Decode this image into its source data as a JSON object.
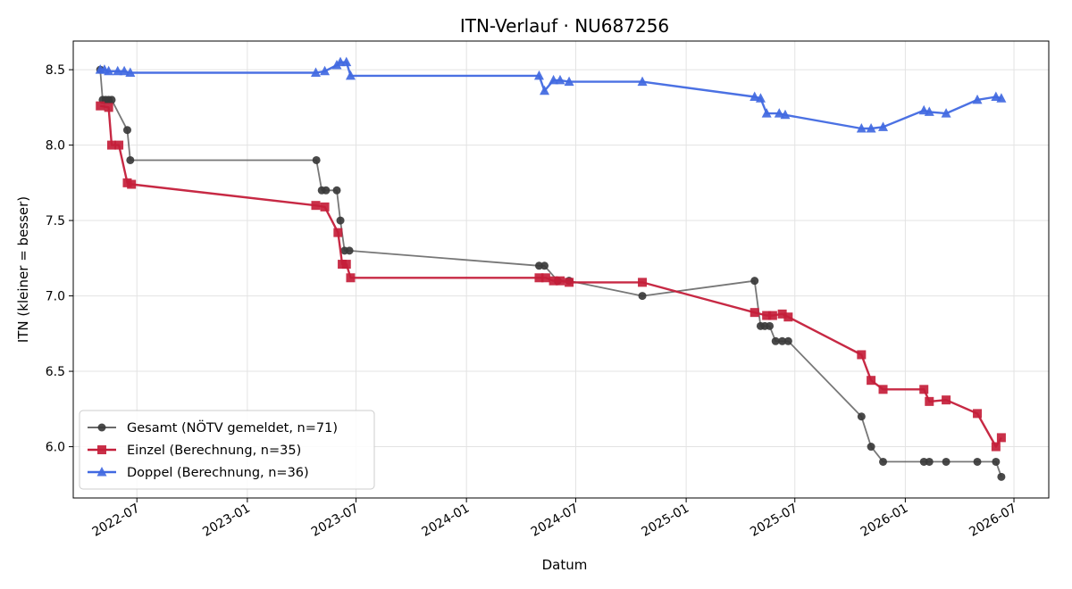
{
  "chart_data": {
    "type": "line",
    "title": "ITN-Verlauf · NU687256",
    "xlabel": "Datum",
    "ylabel": "ITN  (kleiner = besser)",
    "x_type": "date",
    "xlim": [
      "2022-03-17",
      "2026-08-28"
    ],
    "ylim": [
      5.66,
      8.69
    ],
    "x_ticks": [
      "2022-07",
      "2023-01",
      "2023-07",
      "2024-01",
      "2024-07",
      "2025-01",
      "2025-07",
      "2026-01",
      "2026-07"
    ],
    "y_ticks": [
      6.0,
      6.5,
      7.0,
      7.5,
      8.0,
      8.5
    ],
    "grid": true,
    "legend_position": "lower-left",
    "series": [
      {
        "name": "Gesamt (NÖTV gemeldet, n=71)",
        "color": "#555555",
        "marker": "circle",
        "points": [
          [
            "2022-05-01",
            8.5
          ],
          [
            "2022-05-05",
            8.3
          ],
          [
            "2022-05-10",
            8.3
          ],
          [
            "2022-05-15",
            8.3
          ],
          [
            "2022-05-20",
            8.3
          ],
          [
            "2022-06-15",
            8.1
          ],
          [
            "2022-06-20",
            7.9
          ],
          [
            "2023-04-26",
            7.9
          ],
          [
            "2023-05-05",
            7.7
          ],
          [
            "2023-05-12",
            7.7
          ],
          [
            "2023-05-30",
            7.7
          ],
          [
            "2023-06-05",
            7.5
          ],
          [
            "2023-06-12",
            7.3
          ],
          [
            "2023-06-20",
            7.3
          ],
          [
            "2024-05-01",
            7.2
          ],
          [
            "2024-05-10",
            7.2
          ],
          [
            "2024-06-01",
            7.1
          ],
          [
            "2024-06-20",
            7.1
          ],
          [
            "2024-10-20",
            7.0
          ],
          [
            "2025-04-25",
            7.1
          ],
          [
            "2025-05-05",
            6.8
          ],
          [
            "2025-05-12",
            6.8
          ],
          [
            "2025-05-20",
            6.8
          ],
          [
            "2025-05-30",
            6.7
          ],
          [
            "2025-06-10",
            6.7
          ],
          [
            "2025-06-20",
            6.7
          ],
          [
            "2025-10-20",
            6.2
          ],
          [
            "2025-11-05",
            6.0
          ],
          [
            "2025-11-25",
            5.9
          ],
          [
            "2026-02-01",
            5.9
          ],
          [
            "2026-02-10",
            5.9
          ],
          [
            "2026-03-10",
            5.9
          ],
          [
            "2026-05-01",
            5.9
          ],
          [
            "2026-06-01",
            5.9
          ],
          [
            "2026-06-10",
            5.8
          ]
        ]
      },
      {
        "name": "Einzel (Berechnung, n=35)",
        "color": "#c41e3a",
        "marker": "square",
        "points": [
          [
            "2022-05-01",
            8.26
          ],
          [
            "2022-05-15",
            8.25
          ],
          [
            "2022-05-20",
            8.0
          ],
          [
            "2022-06-01",
            8.0
          ],
          [
            "2022-06-15",
            7.75
          ],
          [
            "2022-06-22",
            7.74
          ],
          [
            "2023-04-25",
            7.6
          ],
          [
            "2023-05-10",
            7.59
          ],
          [
            "2023-06-01",
            7.42
          ],
          [
            "2023-06-08",
            7.21
          ],
          [
            "2023-06-15",
            7.21
          ],
          [
            "2023-06-22",
            7.12
          ],
          [
            "2024-05-01",
            7.12
          ],
          [
            "2024-05-12",
            7.12
          ],
          [
            "2024-05-25",
            7.1
          ],
          [
            "2024-06-05",
            7.1
          ],
          [
            "2024-06-20",
            7.09
          ],
          [
            "2024-10-20",
            7.09
          ],
          [
            "2025-04-25",
            6.89
          ],
          [
            "2025-05-15",
            6.87
          ],
          [
            "2025-05-25",
            6.87
          ],
          [
            "2025-06-10",
            6.88
          ],
          [
            "2025-06-20",
            6.86
          ],
          [
            "2025-10-20",
            6.61
          ],
          [
            "2025-11-05",
            6.44
          ],
          [
            "2025-11-25",
            6.38
          ],
          [
            "2026-02-01",
            6.38
          ],
          [
            "2026-02-10",
            6.3
          ],
          [
            "2026-03-10",
            6.31
          ],
          [
            "2026-05-01",
            6.22
          ],
          [
            "2026-06-01",
            6.0
          ],
          [
            "2026-06-10",
            6.06
          ]
        ]
      },
      {
        "name": "Doppel (Berechnung, n=36)",
        "color": "#4169e1",
        "marker": "triangle",
        "points": [
          [
            "2022-05-01",
            8.5
          ],
          [
            "2022-05-08",
            8.5
          ],
          [
            "2022-05-15",
            8.49
          ],
          [
            "2022-05-30",
            8.49
          ],
          [
            "2022-06-10",
            8.49
          ],
          [
            "2022-06-20",
            8.48
          ],
          [
            "2023-04-25",
            8.48
          ],
          [
            "2023-05-10",
            8.49
          ],
          [
            "2023-05-30",
            8.53
          ],
          [
            "2023-06-05",
            8.55
          ],
          [
            "2023-06-15",
            8.55
          ],
          [
            "2023-06-22",
            8.46
          ],
          [
            "2024-05-01",
            8.46
          ],
          [
            "2024-05-10",
            8.36
          ],
          [
            "2024-05-25",
            8.43
          ],
          [
            "2024-06-05",
            8.43
          ],
          [
            "2024-06-20",
            8.42
          ],
          [
            "2024-10-20",
            8.42
          ],
          [
            "2025-04-25",
            8.32
          ],
          [
            "2025-05-05",
            8.31
          ],
          [
            "2025-05-15",
            8.21
          ],
          [
            "2025-06-05",
            8.21
          ],
          [
            "2025-06-15",
            8.2
          ],
          [
            "2025-10-20",
            8.11
          ],
          [
            "2025-11-05",
            8.11
          ],
          [
            "2025-11-25",
            8.12
          ],
          [
            "2026-02-01",
            8.23
          ],
          [
            "2026-02-10",
            8.22
          ],
          [
            "2026-03-10",
            8.21
          ],
          [
            "2026-05-01",
            8.3
          ],
          [
            "2026-06-01",
            8.32
          ],
          [
            "2026-06-10",
            8.31
          ]
        ]
      }
    ]
  }
}
